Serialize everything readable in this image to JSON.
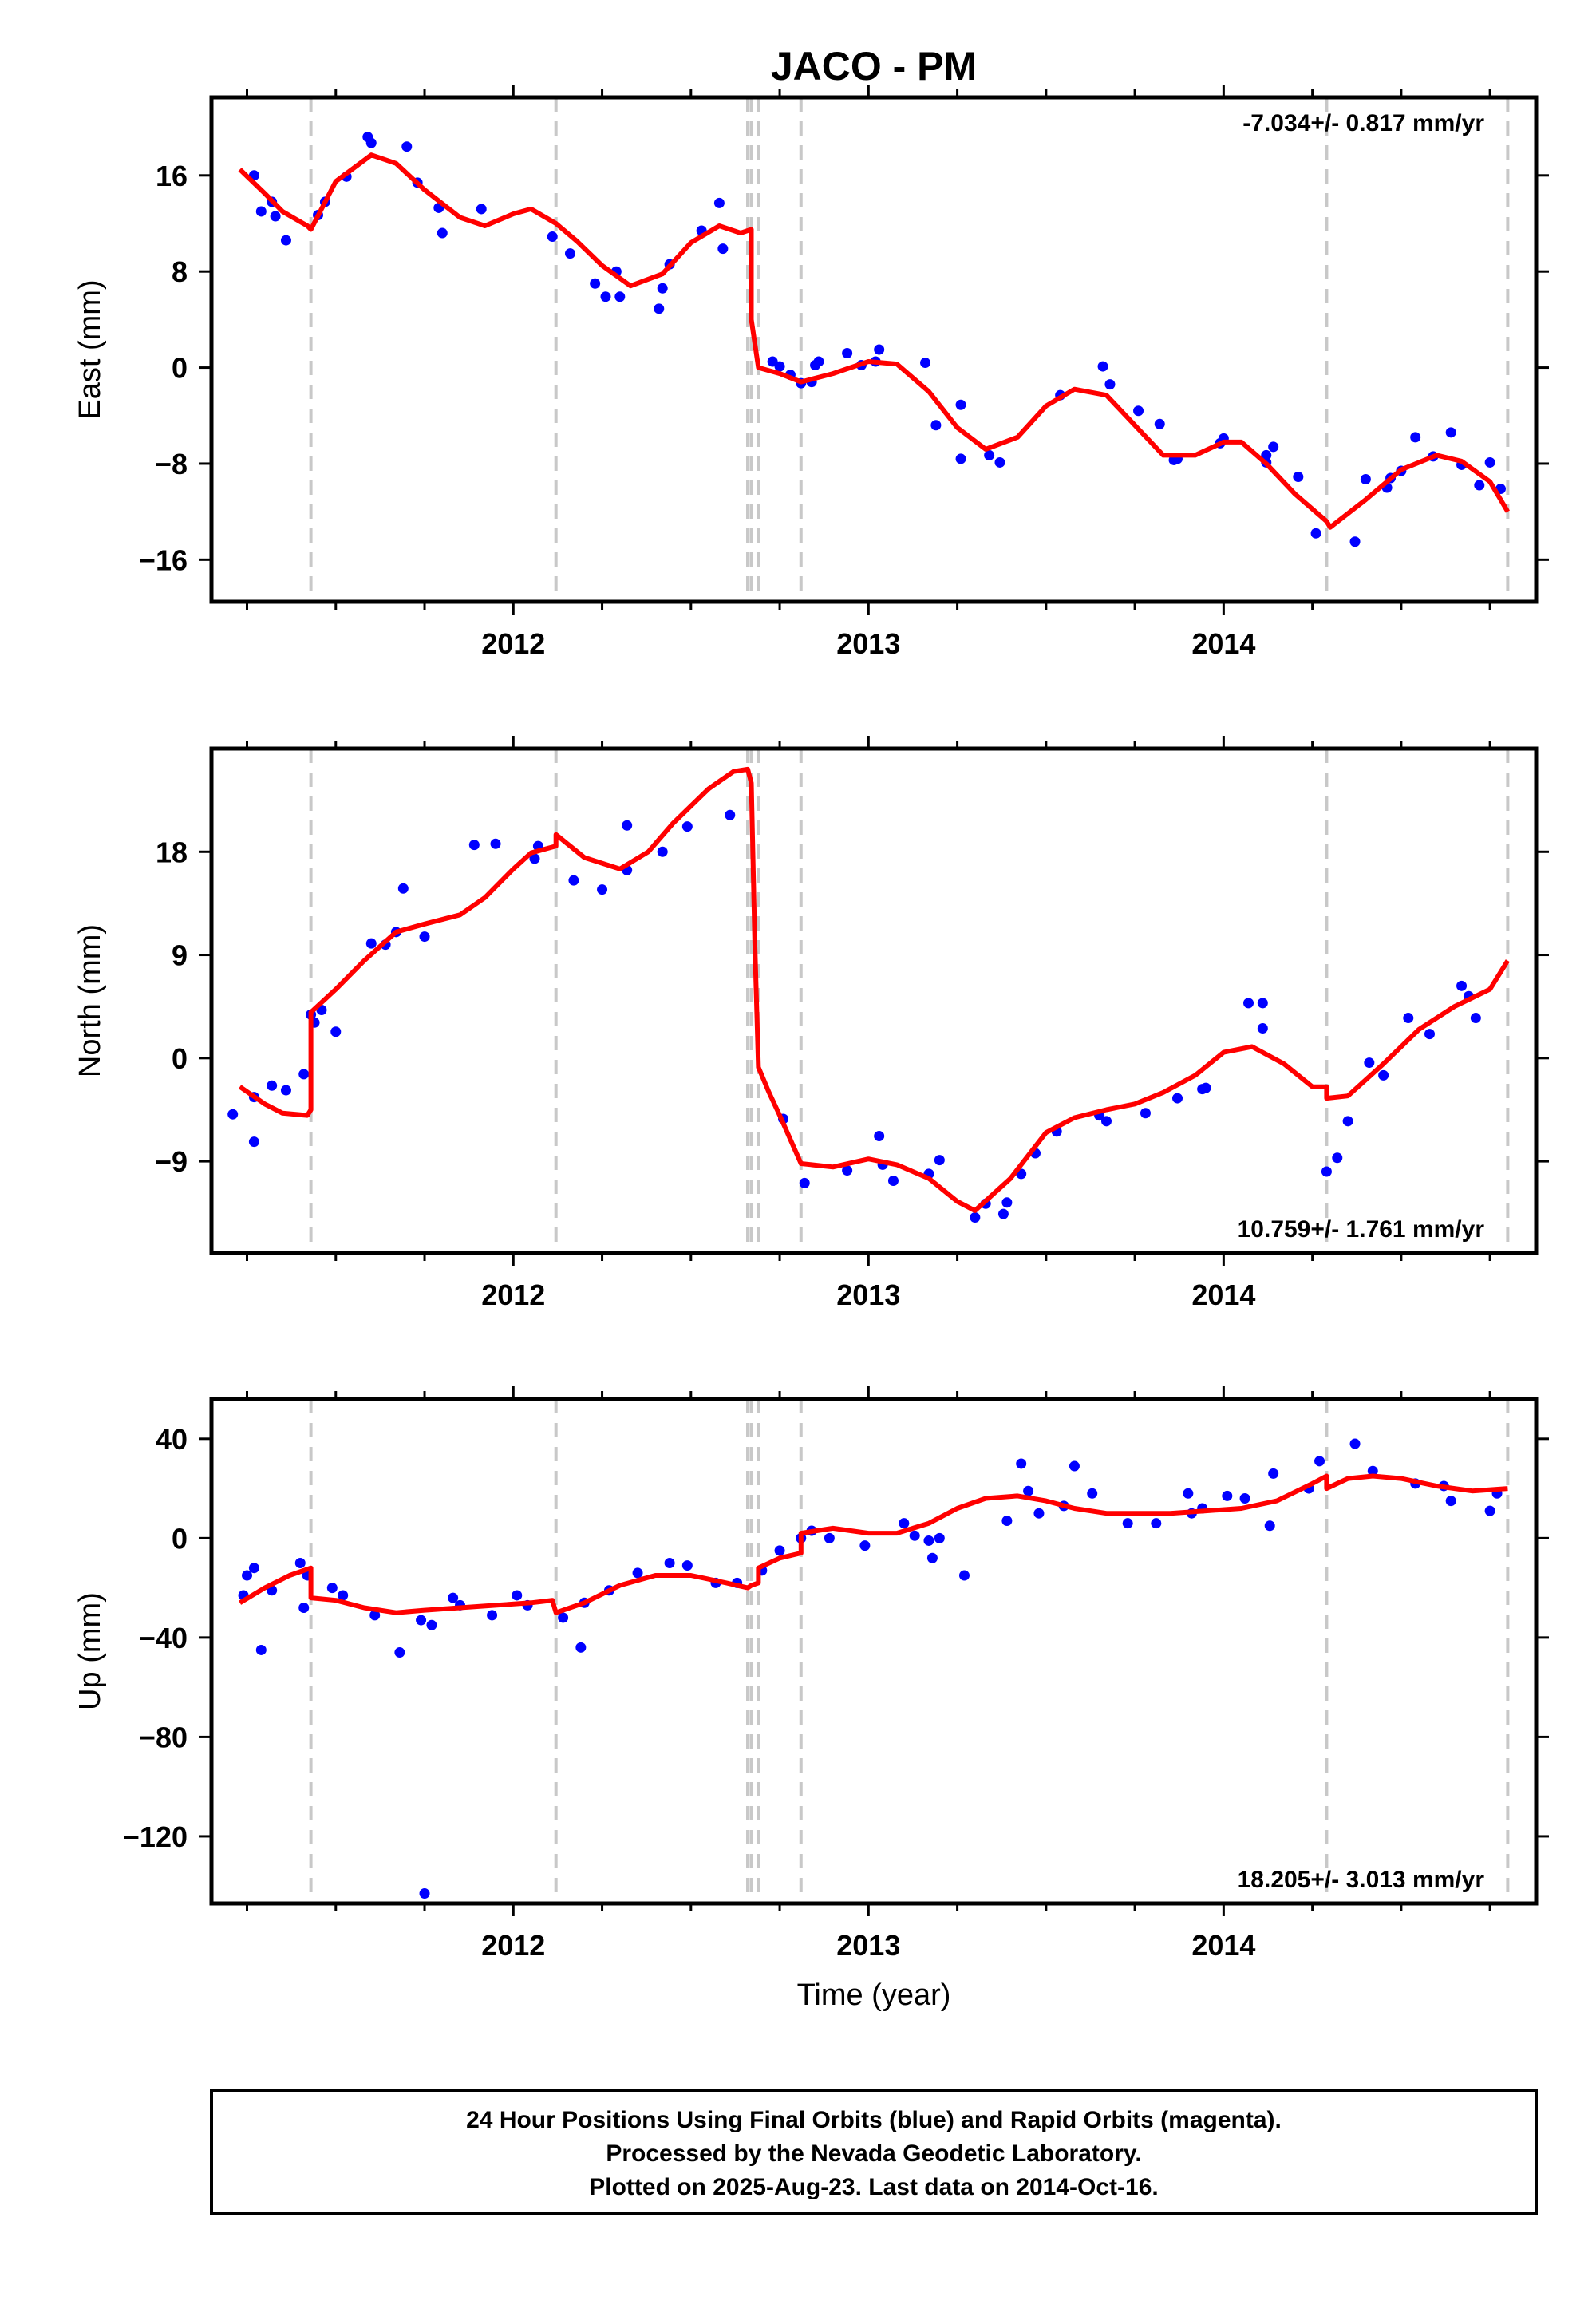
{
  "title": "JACO - PM",
  "footer": {
    "lines": [
      "24 Hour Positions Using Final Orbits (blue) and Rapid Orbits (magenta).",
      "Processed by the Nevada Geodetic Laboratory.",
      "Plotted on 2025-Aug-23. Last data on 2014-Oct-16."
    ]
  },
  "colors": {
    "final_orbits": "#0000ff",
    "model": "#ff0000",
    "events": "#c8c8c8",
    "frame": "#000000"
  },
  "chart_data": [
    {
      "type": "scatter",
      "title": "JACO - PM",
      "ylabel": "East (mm)",
      "xlabel": "",
      "xlim": [
        2011.15,
        2014.88
      ],
      "ylim": [
        -19.5,
        22.5
      ],
      "yticks": [
        16,
        8,
        0,
        -8,
        -16
      ],
      "yticklabels": [
        "16",
        "8",
        "0",
        "−8",
        "−16"
      ],
      "xticks": [
        2012,
        2013,
        2014
      ],
      "xticklabels": [
        "2012",
        "2013",
        "2014"
      ],
      "rate_label": "-7.034+/- 0.817 mm/yr",
      "rate_position": "top-right",
      "events": [
        2011.43,
        2012.12,
        2012.66,
        2012.67,
        2012.69,
        2012.81,
        2014.29,
        2014.8
      ],
      "model": {
        "x": [
          2011.23,
          2011.3,
          2011.35,
          2011.42,
          2011.43,
          2011.5,
          2011.6,
          2011.67,
          2011.75,
          2011.85,
          2011.92,
          2012.0,
          2012.05,
          2012.12,
          2012.18,
          2012.25,
          2012.33,
          2012.42,
          2012.5,
          2012.58,
          2012.64,
          2012.67,
          2012.67,
          2012.69,
          2012.75,
          2012.81,
          2012.9,
          2013.0,
          2013.08,
          2013.17,
          2013.25,
          2013.33,
          2013.42,
          2013.5,
          2013.58,
          2013.67,
          2013.75,
          2013.83,
          2013.92,
          2014.0,
          2014.05,
          2014.12,
          2014.2,
          2014.29,
          2014.3,
          2014.4,
          2014.5,
          2014.6,
          2014.67,
          2014.75,
          2014.8
        ],
        "y": [
          16.5,
          14.5,
          13,
          11.8,
          11.5,
          15.5,
          17.7,
          17,
          14.8,
          12.5,
          11.8,
          12.8,
          13.2,
          12,
          10.5,
          8.5,
          6.8,
          7.8,
          10.4,
          11.8,
          11.2,
          11.5,
          4,
          0,
          -0.5,
          -1.2,
          -0.5,
          0.5,
          0.3,
          -2,
          -5,
          -6.8,
          -5.8,
          -3.2,
          -1.8,
          -2.3,
          -4.8,
          -7.3,
          -7.3,
          -6.2,
          -6.2,
          -8,
          -10.5,
          -12.8,
          -13.3,
          -11,
          -8.5,
          -7.3,
          -7.8,
          -9.5,
          -12
        ]
      },
      "observations": {
        "x": [
          2011.27,
          2011.29,
          2011.32,
          2011.33,
          2011.36,
          2011.45,
          2011.47,
          2011.53,
          2011.59,
          2011.6,
          2011.7,
          2011.73,
          2011.79,
          2011.8,
          2011.91,
          2012.11,
          2012.16,
          2012.23,
          2012.26,
          2012.29,
          2012.3,
          2012.41,
          2012.42,
          2012.44,
          2012.53,
          2012.58,
          2012.59,
          2012.73,
          2012.75,
          2012.78,
          2012.81,
          2012.84,
          2012.85,
          2012.86,
          2012.94,
          2012.98,
          2013.02,
          2013.03,
          2013.16,
          2013.19,
          2013.26,
          2013.26,
          2013.34,
          2013.37,
          2013.54,
          2013.66,
          2013.68,
          2013.76,
          2013.82,
          2013.86,
          2013.87,
          2013.99,
          2014.0,
          2014.12,
          2014.12,
          2014.14,
          2014.21,
          2014.26,
          2014.37,
          2014.4,
          2014.46,
          2014.47,
          2014.5,
          2014.54,
          2014.59,
          2014.64,
          2014.67,
          2014.72,
          2014.75,
          2014.78
        ],
        "y": [
          16,
          13,
          13.8,
          12.6,
          10.6,
          12.7,
          13.8,
          15.9,
          19.2,
          18.7,
          18.4,
          15.4,
          13.3,
          11.2,
          13.2,
          10.9,
          9.5,
          7,
          5.9,
          8,
          5.9,
          4.9,
          6.6,
          8.6,
          11.4,
          13.7,
          9.9,
          0.5,
          0.1,
          -0.6,
          -1.3,
          -1.2,
          0.2,
          0.5,
          1.2,
          0.2,
          0.5,
          1.5,
          0.4,
          -4.8,
          -3.1,
          -7.6,
          -7.3,
          -7.9,
          -2.3,
          0.1,
          -1.4,
          -3.6,
          -4.7,
          -7.7,
          -7.6,
          -6.3,
          -5.9,
          -7.3,
          -7.9,
          -6.6,
          -9.1,
          -13.8,
          -14.5,
          -9.3,
          -10,
          -9.2,
          -8.6,
          -5.8,
          -7.4,
          -5.4,
          -8.1,
          -9.8,
          -7.9,
          -10.1
        ]
      }
    },
    {
      "type": "scatter",
      "ylabel": "North (mm)",
      "xlabel": "",
      "xlim": [
        2011.15,
        2014.88
      ],
      "ylim": [
        -17,
        27
      ],
      "yticks": [
        18,
        9,
        0,
        -9
      ],
      "yticklabels": [
        "18",
        "9",
        "0",
        "−9"
      ],
      "xticks": [
        2012,
        2013,
        2014
      ],
      "xticklabels": [
        "2012",
        "2013",
        "2014"
      ],
      "rate_label": "10.759+/- 1.761 mm/yr",
      "rate_position": "bottom-right",
      "events": [
        2011.43,
        2012.12,
        2012.66,
        2012.67,
        2012.69,
        2012.81,
        2014.29,
        2014.8
      ],
      "model": {
        "x": [
          2011.23,
          2011.3,
          2011.35,
          2011.42,
          2011.43,
          2011.43,
          2011.5,
          2011.58,
          2011.67,
          2011.75,
          2011.85,
          2011.92,
          2012.0,
          2012.05,
          2012.12,
          2012.12,
          2012.2,
          2012.3,
          2012.38,
          2012.45,
          2012.55,
          2012.62,
          2012.66,
          2012.67,
          2012.68,
          2012.69,
          2012.72,
          2012.75,
          2012.81,
          2012.9,
          2013.0,
          2013.08,
          2013.17,
          2013.25,
          2013.3,
          2013.4,
          2013.5,
          2013.58,
          2013.67,
          2013.75,
          2013.83,
          2013.92,
          2014.0,
          2014.08,
          2014.17,
          2014.25,
          2014.29,
          2014.29,
          2014.35,
          2014.45,
          2014.55,
          2014.65,
          2014.75,
          2014.8
        ],
        "y": [
          -2.5,
          -4,
          -4.8,
          -5,
          -4.5,
          4,
          6,
          8.5,
          11,
          11.7,
          12.5,
          14,
          16.5,
          17.9,
          18.5,
          19.5,
          17.5,
          16.5,
          18,
          20.5,
          23.5,
          25,
          25.2,
          24,
          10,
          -0.8,
          -3,
          -5,
          -9.2,
          -9.5,
          -8.8,
          -9.3,
          -10.5,
          -12.5,
          -13.3,
          -10.5,
          -6.5,
          -5.2,
          -4.5,
          -4,
          -3,
          -1.5,
          0.5,
          1,
          -0.5,
          -2.5,
          -2.5,
          -3.5,
          -3.3,
          -0.5,
          2.5,
          4.5,
          6,
          8.5
        ]
      },
      "observations": {
        "x": [
          2011.21,
          2011.27,
          2011.27,
          2011.32,
          2011.36,
          2011.41,
          2011.43,
          2011.44,
          2011.46,
          2011.5,
          2011.6,
          2011.64,
          2011.67,
          2011.69,
          2011.75,
          2011.89,
          2011.95,
          2012.06,
          2012.07,
          2012.17,
          2012.25,
          2012.32,
          2012.32,
          2012.42,
          2012.49,
          2012.61,
          2012.76,
          2012.82,
          2012.94,
          2013.03,
          2013.04,
          2013.07,
          2013.17,
          2013.2,
          2013.3,
          2013.33,
          2013.38,
          2013.39,
          2013.43,
          2013.47,
          2013.53,
          2013.65,
          2013.67,
          2013.78,
          2013.87,
          2013.94,
          2013.95,
          2014.07,
          2014.11,
          2014.11,
          2014.29,
          2014.32,
          2014.35,
          2014.41,
          2014.45,
          2014.52,
          2014.58,
          2014.67,
          2014.69,
          2014.71
        ],
        "y": [
          -4.9,
          -3.4,
          -7.3,
          -2.4,
          -2.8,
          -1.4,
          3.8,
          3.1,
          4.2,
          2.3,
          10,
          9.9,
          11,
          14.8,
          10.6,
          18.6,
          18.7,
          17.4,
          18.5,
          15.5,
          14.7,
          16.4,
          20.3,
          18,
          20.2,
          21.2,
          -5.3,
          -10.9,
          -9.8,
          -6.8,
          -9.3,
          -10.7,
          -10.1,
          -8.9,
          -13.9,
          -12.7,
          -13.6,
          -12.6,
          -10.1,
          -8.3,
          -6.4,
          -5,
          -5.5,
          -4.8,
          -3.5,
          -2.7,
          -2.6,
          4.8,
          4.8,
          2.6,
          -9.9,
          -8.7,
          -5.5,
          -0.4,
          -1.5,
          3.5,
          2.1,
          6.3,
          5.4,
          3.5
        ]
      }
    },
    {
      "type": "scatter",
      "ylabel": "Up (mm)",
      "xlabel": "Time (year)",
      "xlim": [
        2011.15,
        2014.88
      ],
      "ylim": [
        -147,
        56
      ],
      "yticks": [
        40,
        0,
        -40,
        -80,
        -120
      ],
      "yticklabels": [
        "40",
        "0",
        "−40",
        "−80",
        "−120"
      ],
      "xticks": [
        2012,
        2013,
        2014
      ],
      "xticklabels": [
        "2012",
        "2013",
        "2014"
      ],
      "rate_label": "18.205+/- 3.013 mm/yr",
      "rate_position": "bottom-right",
      "events": [
        2011.43,
        2012.12,
        2012.66,
        2012.67,
        2012.69,
        2012.81,
        2014.29,
        2014.8
      ],
      "model": {
        "x": [
          2011.23,
          2011.3,
          2011.37,
          2011.43,
          2011.43,
          2011.5,
          2011.58,
          2011.67,
          2011.75,
          2011.85,
          2011.95,
          2012.05,
          2012.11,
          2012.12,
          2012.2,
          2012.3,
          2012.4,
          2012.5,
          2012.6,
          2012.66,
          2012.67,
          2012.69,
          2012.69,
          2012.75,
          2012.81,
          2012.81,
          2012.9,
          2013.0,
          2013.08,
          2013.17,
          2013.25,
          2013.33,
          2013.42,
          2013.5,
          2013.58,
          2013.67,
          2013.75,
          2013.85,
          2013.95,
          2014.05,
          2014.15,
          2014.25,
          2014.29,
          2014.29,
          2014.35,
          2014.42,
          2014.5,
          2014.6,
          2014.7,
          2014.8
        ],
        "y": [
          -26,
          -20,
          -15,
          -12,
          -24,
          -25,
          -28,
          -30,
          -29,
          -28,
          -27,
          -26,
          -25,
          -30,
          -26,
          -19,
          -15,
          -15,
          -18,
          -20,
          -19,
          -18,
          -12,
          -8,
          -6,
          2,
          4,
          2,
          2,
          6,
          12,
          16,
          17,
          15,
          12,
          10,
          10,
          10,
          11,
          12,
          15,
          22,
          25,
          20,
          24,
          25,
          24,
          21,
          19,
          20
        ]
      },
      "observations": {
        "x": [
          2011.24,
          2011.25,
          2011.27,
          2011.29,
          2011.32,
          2011.4,
          2011.41,
          2011.42,
          2011.49,
          2011.52,
          2011.61,
          2011.68,
          2011.74,
          2011.77,
          2011.83,
          2011.85,
          2011.94,
          2012.01,
          2012.04,
          2012.14,
          2012.19,
          2012.2,
          2012.27,
          2012.35,
          2012.44,
          2012.49,
          2012.57,
          2012.63,
          2012.7,
          2012.75,
          2012.81,
          2012.84,
          2012.89,
          2012.99,
          2013.1,
          2013.13,
          2013.17,
          2013.18,
          2013.2,
          2013.27,
          2013.39,
          2013.43,
          2013.45,
          2013.48,
          2013.55,
          2013.58,
          2013.63,
          2013.73,
          2013.81,
          2013.9,
          2013.91,
          2013.94,
          2014.01,
          2014.06,
          2014.13,
          2014.14,
          2014.24,
          2014.27,
          2014.37,
          2014.42,
          2014.54,
          2014.62,
          2014.64,
          2014.75,
          2014.77,
          2011.75
        ],
        "y": [
          -23,
          -15,
          -12,
          -45,
          -21,
          -10,
          -28,
          -15,
          -20,
          -23,
          -31,
          -46,
          -33,
          -35,
          -24,
          -27,
          -31,
          -23,
          -27,
          -32,
          -44,
          -26,
          -21,
          -14,
          -10,
          -11,
          -18,
          -18,
          -13,
          -5,
          0,
          3,
          0,
          -3,
          6,
          1,
          -1,
          -8,
          0,
          -15,
          7,
          30,
          19,
          10,
          13,
          29,
          18,
          6,
          6,
          18,
          10,
          12,
          17,
          16,
          5,
          26,
          20,
          31,
          38,
          27,
          22,
          21,
          15,
          11,
          18,
          -143
        ]
      }
    }
  ]
}
